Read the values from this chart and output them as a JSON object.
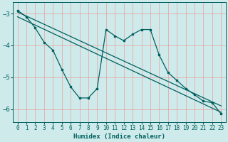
{
  "xlabel": "Humidex (Indice chaleur)",
  "bg_color": "#ceeaea",
  "grid_color": "#e8a0a0",
  "line_color": "#006060",
  "xlim": [
    -0.5,
    23.5
  ],
  "ylim": [
    -6.4,
    -2.65
  ],
  "xticks": [
    0,
    1,
    2,
    3,
    4,
    5,
    6,
    7,
    8,
    9,
    10,
    11,
    12,
    13,
    14,
    15,
    16,
    17,
    18,
    19,
    20,
    21,
    22,
    23
  ],
  "yticks": [
    -6,
    -5,
    -4,
    -3
  ],
  "line1_x": [
    0,
    1,
    2,
    3,
    4,
    5,
    6,
    7,
    8,
    9,
    10,
    11,
    12,
    13,
    14,
    15,
    16,
    17,
    18,
    19,
    20,
    21,
    22,
    23
  ],
  "line1_y": [
    -2.9,
    -3.1,
    -3.45,
    -3.9,
    -4.15,
    -4.75,
    -5.3,
    -5.65,
    -5.65,
    -5.35,
    -3.5,
    -3.7,
    -3.85,
    -3.65,
    -3.5,
    -3.5,
    -4.3,
    -4.85,
    -5.1,
    -5.35,
    -5.55,
    -5.75,
    -5.8,
    -6.15
  ],
  "line2_x": [
    0,
    23
  ],
  "line2_y": [
    -2.95,
    -5.9
  ],
  "line3_x": [
    0,
    23
  ],
  "line3_y": [
    -3.1,
    -6.1
  ]
}
